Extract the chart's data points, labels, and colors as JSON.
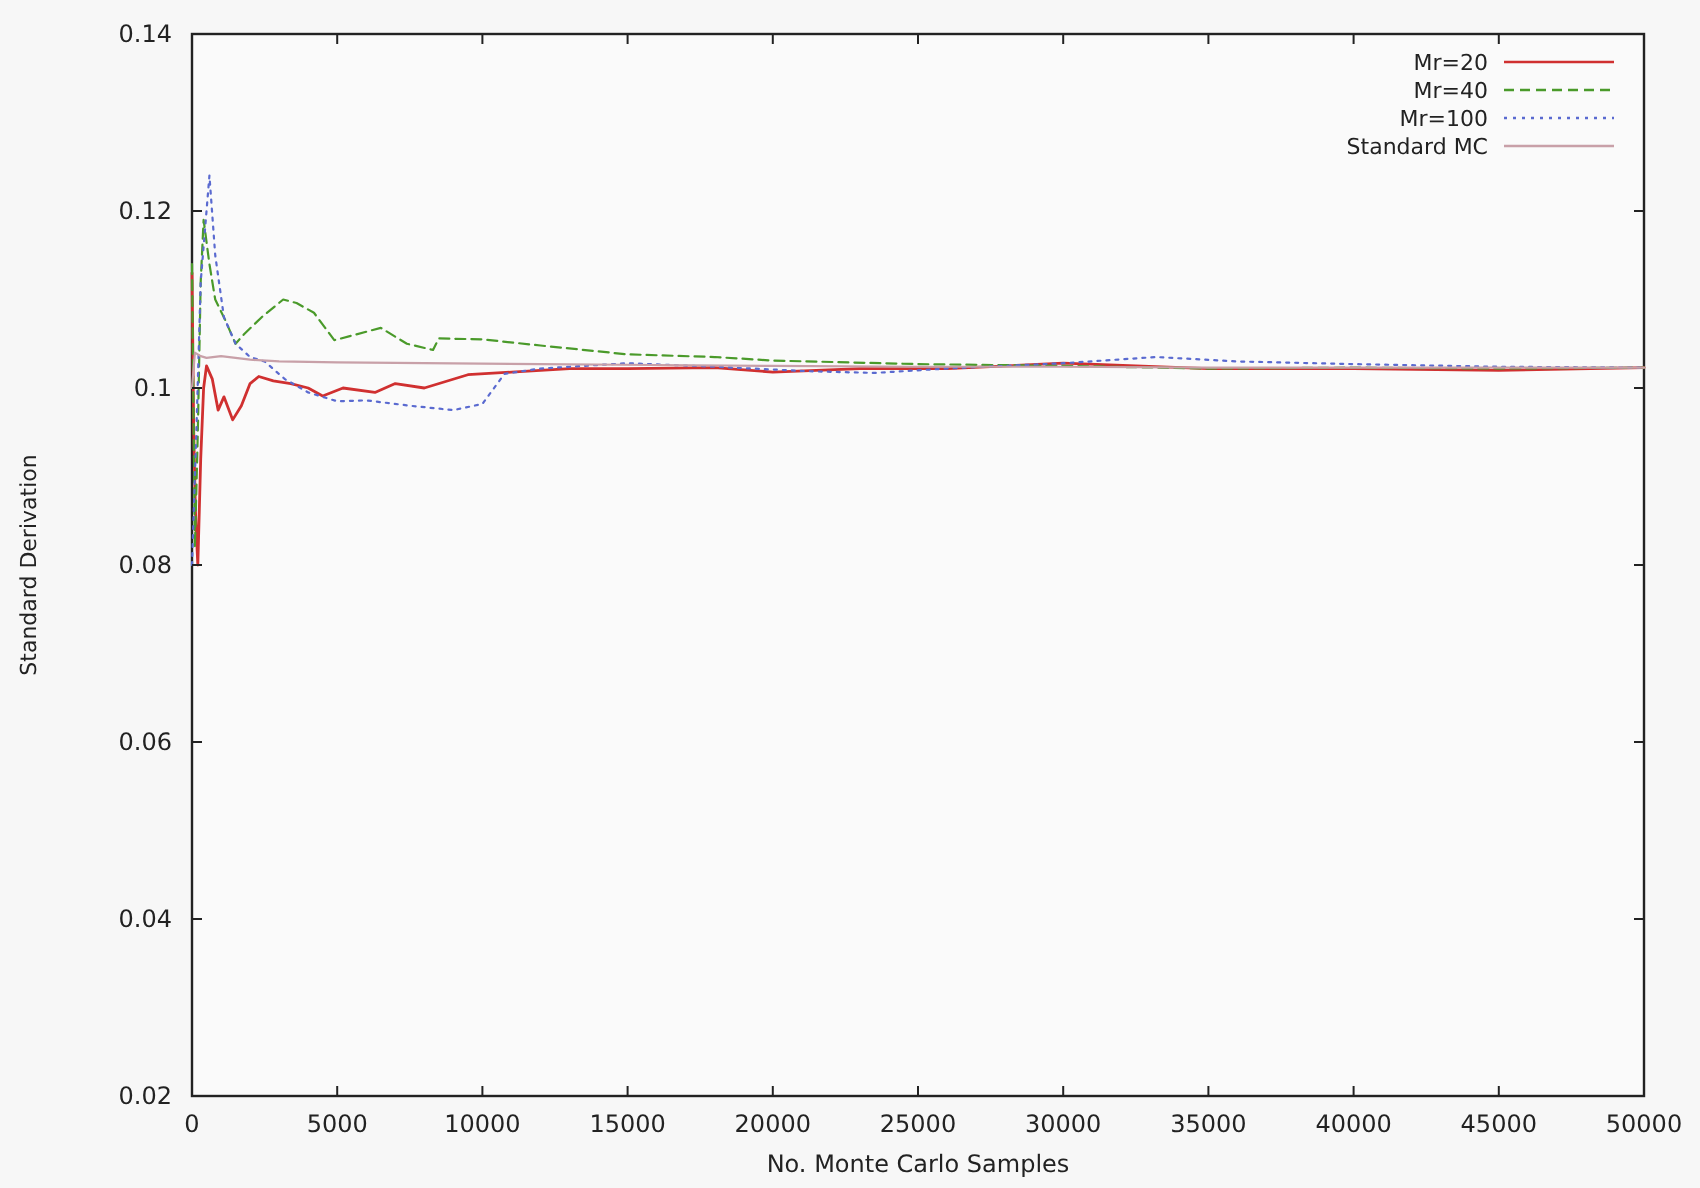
{
  "chart_data": {
    "type": "line",
    "xlabel": "No. Monte Carlo Samples",
    "ylabel": "Standard Derivation",
    "xlim": [
      0,
      50000
    ],
    "ylim": [
      0.02,
      0.14
    ],
    "xticks": [
      0,
      5000,
      10000,
      15000,
      20000,
      25000,
      30000,
      35000,
      40000,
      45000,
      50000
    ],
    "yticks": [
      0.02,
      0.04,
      0.06,
      0.08,
      {
        "value": 0.1,
        "label": "0.1"
      },
      0.12,
      0.14
    ],
    "legend": "top right",
    "grid": false,
    "series": [
      {
        "name": "Mr=20",
        "color": "#d03030",
        "line_style": "solid",
        "x": [
          0,
          60,
          120,
          200,
          300,
          400,
          500,
          700,
          900,
          1100,
          1400,
          1700,
          2000,
          2300,
          2800,
          3400,
          4000,
          4500,
          5200,
          6300,
          7000,
          8000,
          9500,
          11000,
          13000,
          15000,
          18000,
          20000,
          23000,
          26000,
          30000,
          35000,
          40000,
          45000,
          50000
        ],
        "values": [
          0.113,
          0.095,
          0.086,
          0.08,
          0.092,
          0.1,
          0.1025,
          0.101,
          0.0975,
          0.099,
          0.0964,
          0.098,
          0.1005,
          0.1013,
          0.1008,
          0.1005,
          0.1,
          0.0991,
          0.1,
          0.0995,
          0.1005,
          0.1,
          0.1015,
          0.1018,
          0.1022,
          0.1022,
          0.1023,
          0.1018,
          0.1022,
          0.1022,
          0.1028,
          0.1022,
          0.1022,
          0.102,
          0.1023
        ]
      },
      {
        "name": "Mr=40",
        "color": "#4a9a2a",
        "line_style": "dashed",
        "x": [
          0,
          100,
          200,
          300,
          400,
          600,
          800,
          1140,
          1500,
          1800,
          2400,
          3140,
          3600,
          4200,
          4900,
          5600,
          6500,
          7400,
          8300,
          8500,
          10000,
          12000,
          15000,
          18000,
          20000,
          25000,
          30000,
          35000,
          40000,
          45000,
          50000
        ],
        "values": [
          0.114,
          0.082,
          0.095,
          0.112,
          0.119,
          0.114,
          0.11,
          0.1077,
          0.105,
          0.1061,
          0.108,
          0.11,
          0.1096,
          0.1085,
          0.1054,
          0.106,
          0.1068,
          0.105,
          0.1043,
          0.1056,
          0.1055,
          0.1048,
          0.1038,
          0.1035,
          0.1031,
          0.1027,
          0.1025,
          0.1022,
          0.1023,
          0.1022,
          0.1023
        ]
      },
      {
        "name": "Mr=100",
        "color": "#5a6ad0",
        "line_style": "dotted",
        "x": [
          0,
          150,
          300,
          450,
          600,
          800,
          1100,
          1500,
          2000,
          2500,
          3200,
          4000,
          5000,
          6000,
          7500,
          9000,
          10000,
          10760,
          12000,
          15000,
          18000,
          21200,
          23500,
          26000,
          30000,
          33200,
          36000,
          40000,
          45000,
          50000
        ],
        "values": [
          0.08,
          0.095,
          0.112,
          0.118,
          0.124,
          0.115,
          0.108,
          0.105,
          0.1035,
          0.103,
          0.101,
          0.0995,
          0.0985,
          0.0986,
          0.098,
          0.0975,
          0.0982,
          0.1016,
          0.1022,
          0.1028,
          0.1024,
          0.1019,
          0.1017,
          0.1022,
          0.1028,
          0.1035,
          0.103,
          0.1027,
          0.1024,
          0.1023
        ]
      },
      {
        "name": "Standard MC",
        "color": "#c8a0a8",
        "line_style": "solid",
        "x": [
          0,
          100,
          300,
          500,
          1000,
          2000,
          3000,
          5000,
          8000,
          12000,
          16000,
          20000,
          25000,
          30000,
          35000,
          40000,
          45000,
          50000
        ],
        "values": [
          0.1,
          0.104,
          0.1036,
          0.1034,
          0.1036,
          0.1032,
          0.103,
          0.1029,
          0.1028,
          0.1027,
          0.1026,
          0.1025,
          0.1024,
          0.1024,
          0.1023,
          0.1023,
          0.1023,
          0.1023
        ]
      }
    ]
  }
}
